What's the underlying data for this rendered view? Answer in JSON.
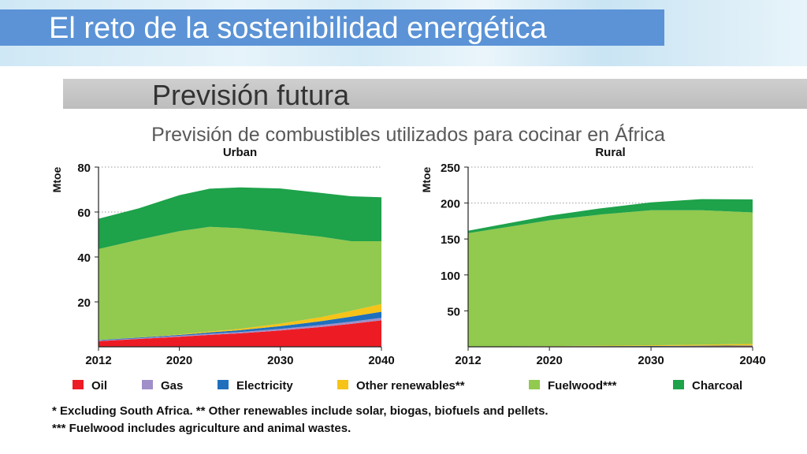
{
  "slide": {
    "title": "El reto de la sostenibilidad energética",
    "subtitle": "Previsión futura",
    "chart_caption": "Previsión de combustibles utilizados para cocinar en África"
  },
  "colors": {
    "title_bar": "#5b93d6",
    "oil": "#ed1c24",
    "gas": "#a08fc8",
    "electricity": "#1f6fbd",
    "other_renewables": "#f6c318",
    "fuelwood": "#92c94f",
    "charcoal": "#1ea24a"
  },
  "legend": [
    {
      "key": "oil",
      "label": "Oil"
    },
    {
      "key": "gas",
      "label": "Gas"
    },
    {
      "key": "electricity",
      "label": "Electricity"
    },
    {
      "key": "other_renewables",
      "label": "Other renewables**"
    },
    {
      "key": "fuelwood",
      "label": "Fuelwood***"
    },
    {
      "key": "charcoal",
      "label": "Charcoal"
    }
  ],
  "footnotes": [
    "* Excluding South Africa. ** Other renewables include solar, biogas, biofuels and pellets.",
    "*** Fuelwood includes agriculture and animal wastes."
  ],
  "chart_data": [
    {
      "type": "area",
      "stacked": true,
      "title": "Urban",
      "ylabel": "Mtoe",
      "xlabel": "",
      "xlim": [
        2012,
        2040
      ],
      "ylim": [
        0,
        80
      ],
      "xticks": [
        2012,
        2020,
        2030,
        2040
      ],
      "yticks": [
        20,
        40,
        60,
        80
      ],
      "grid": "horizontal dotted",
      "x": [
        2012,
        2016,
        2020,
        2023,
        2026,
        2030,
        2034,
        2037,
        2040
      ],
      "series": [
        {
          "name": "Oil",
          "key": "oil",
          "values": [
            2.5,
            3.5,
            4.5,
            5.3,
            6.0,
            7.3,
            8.8,
            10.2,
            11.8
          ]
        },
        {
          "name": "Gas",
          "key": "gas",
          "values": [
            0.3,
            0.3,
            0.4,
            0.5,
            0.6,
            0.7,
            0.9,
            1.0,
            1.1
          ]
        },
        {
          "name": "Electricity",
          "key": "electricity",
          "values": [
            0.2,
            0.3,
            0.4,
            0.6,
            0.8,
            1.2,
            1.7,
            2.2,
            2.7
          ]
        },
        {
          "name": "Other renewables**",
          "key": "other_renewables",
          "values": [
            0.0,
            0.1,
            0.2,
            0.4,
            0.6,
            1.1,
            1.8,
            2.6,
            3.4
          ]
        },
        {
          "name": "Fuelwood***",
          "key": "fuelwood",
          "values": [
            40.5,
            43.5,
            46.0,
            46.6,
            44.8,
            40.7,
            35.8,
            31.0,
            28.0
          ]
        },
        {
          "name": "Charcoal",
          "key": "charcoal",
          "values": [
            13.5,
            14.0,
            16.0,
            17.0,
            18.2,
            19.5,
            19.5,
            20.0,
            19.6
          ]
        }
      ]
    },
    {
      "type": "area",
      "stacked": true,
      "title": "Rural",
      "ylabel": "Mtoe",
      "xlabel": "",
      "xlim": [
        2012,
        2040
      ],
      "ylim": [
        0,
        250
      ],
      "xticks": [
        2012,
        2020,
        2030,
        2040
      ],
      "yticks": [
        50,
        100,
        150,
        200,
        250
      ],
      "grid": "horizontal dotted",
      "x": [
        2012,
        2016,
        2020,
        2025,
        2030,
        2035,
        2040
      ],
      "series": [
        {
          "name": "Oil",
          "key": "oil",
          "values": [
            0.3,
            0.3,
            0.4,
            0.5,
            0.6,
            0.8,
            1.0
          ]
        },
        {
          "name": "Gas",
          "key": "gas",
          "values": [
            0.0,
            0.0,
            0.1,
            0.1,
            0.1,
            0.2,
            0.2
          ]
        },
        {
          "name": "Electricity",
          "key": "electricity",
          "values": [
            0.1,
            0.1,
            0.2,
            0.3,
            0.4,
            0.5,
            0.6
          ]
        },
        {
          "name": "Other renewables**",
          "key": "other_renewables",
          "values": [
            0.1,
            0.1,
            0.3,
            0.6,
            1.0,
            1.5,
            2.2
          ]
        },
        {
          "name": "Fuelwood***",
          "key": "fuelwood",
          "values": [
            157.5,
            166.5,
            175.0,
            182.5,
            187.9,
            187.0,
            183.0
          ]
        },
        {
          "name": "Charcoal",
          "key": "charcoal",
          "values": [
            3.5,
            5.0,
            6.5,
            8.5,
            11.0,
            15.5,
            18.0
          ]
        }
      ]
    }
  ]
}
